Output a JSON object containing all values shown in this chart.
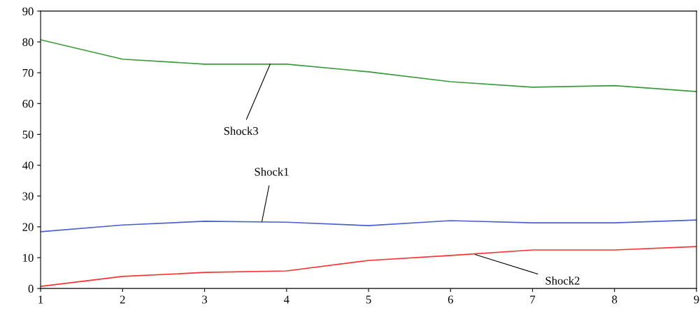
{
  "chart_data": {
    "type": "line",
    "x": [
      1,
      2,
      3,
      4,
      5,
      6,
      7,
      8,
      9
    ],
    "series": [
      {
        "color": "#4a5fd0",
        "values": [
          18.4,
          20.6,
          21.8,
          21.5,
          20.4,
          22.0,
          21.3,
          21.3,
          22.2
        ]
      },
      {
        "color": "#ff3030",
        "values": [
          0.7,
          3.9,
          5.2,
          5.7,
          9.1,
          10.7,
          12.5,
          12.5,
          13.6
        ]
      },
      {
        "color": "#3a9a3a",
        "values": [
          80.7,
          74.4,
          72.8,
          72.8,
          70.3,
          67.1,
          65.3,
          65.8,
          63.9
        ]
      }
    ],
    "annotations": [
      {
        "text": "Shock3",
        "x": 3.8,
        "y": 72.8
      },
      {
        "text": "Shock1",
        "x": 3.7,
        "y": 21.8
      },
      {
        "text": "Shock2",
        "x": 6.3,
        "y": 11.0
      }
    ],
    "xlim": [
      1,
      9
    ],
    "xticks": [
      1,
      2,
      3,
      4,
      5,
      6,
      7,
      8,
      9
    ],
    "ylim": [
      0,
      90
    ],
    "yticks": [
      0,
      10,
      20,
      30,
      40,
      50,
      60,
      70,
      80,
      90
    ],
    "grid": false,
    "legend": false,
    "marker": "none",
    "line_style": "solid"
  }
}
